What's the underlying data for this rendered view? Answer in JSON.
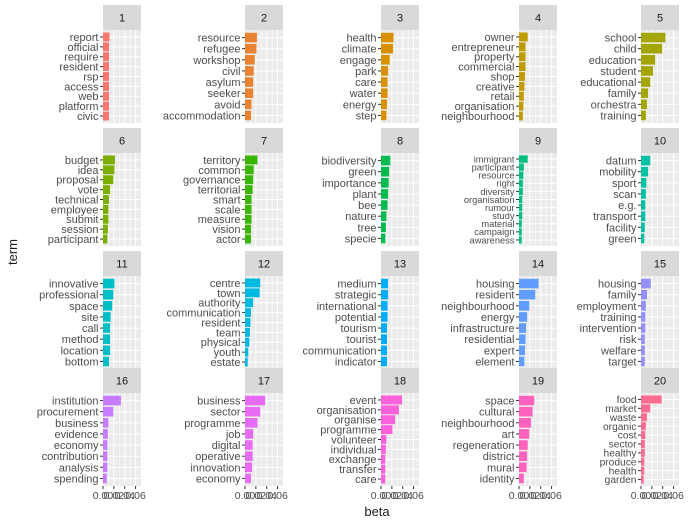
{
  "chart_data": {
    "type": "bar",
    "orientation": "horizontal",
    "facet": "topic",
    "xlabel": "beta",
    "ylabel": "term",
    "x_tick_labels": [
      "0.00",
      "0.02",
      "0.04",
      "0.06"
    ],
    "xlim": [
      0,
      0.07
    ],
    "grid": true,
    "legend": "none",
    "panels": [
      {
        "topic": "1",
        "color": "#F8766D",
        "terms": [
          "report",
          "official",
          "require",
          "resident",
          "rsp",
          "access",
          "web",
          "platform",
          "civic"
        ],
        "values": [
          0.012,
          0.011,
          0.011,
          0.011,
          0.011,
          0.011,
          0.011,
          0.011,
          0.011
        ]
      },
      {
        "topic": "2",
        "color": "#EA8331",
        "terms": [
          "resource",
          "refugee",
          "workshop",
          "civil",
          "asylum",
          "seeker",
          "avoid",
          "accommodation"
        ],
        "values": [
          0.022,
          0.021,
          0.018,
          0.016,
          0.015,
          0.015,
          0.012,
          0.011
        ]
      },
      {
        "topic": "3",
        "color": "#D89000",
        "terms": [
          "health",
          "climate",
          "engage",
          "park",
          "care",
          "water",
          "energy",
          "step"
        ],
        "values": [
          0.023,
          0.022,
          0.016,
          0.013,
          0.012,
          0.012,
          0.011,
          0.01
        ]
      },
      {
        "topic": "4",
        "color": "#C09B00",
        "terms": [
          "owner",
          "entrepreneur",
          "property",
          "commercial",
          "shop",
          "creative",
          "retail",
          "organisation",
          "neighbourhood"
        ],
        "values": [
          0.016,
          0.012,
          0.012,
          0.012,
          0.011,
          0.01,
          0.009,
          0.008,
          0.007
        ]
      },
      {
        "topic": "5",
        "color": "#A3A500",
        "terms": [
          "school",
          "child",
          "education",
          "student",
          "educational",
          "family",
          "orchestra",
          "training"
        ],
        "values": [
          0.045,
          0.039,
          0.026,
          0.022,
          0.017,
          0.013,
          0.011,
          0.009
        ]
      },
      {
        "topic": "6",
        "color": "#7CAE00",
        "terms": [
          "budget",
          "idea",
          "proposal",
          "vote",
          "technical",
          "employee",
          "submit",
          "session",
          "participant"
        ],
        "values": [
          0.022,
          0.021,
          0.019,
          0.013,
          0.011,
          0.01,
          0.01,
          0.009,
          0.008
        ]
      },
      {
        "topic": "7",
        "color": "#39B600",
        "terms": [
          "territory",
          "common",
          "governance",
          "territorial",
          "smart",
          "scale",
          "measure",
          "vision",
          "actor"
        ],
        "values": [
          0.023,
          0.016,
          0.015,
          0.014,
          0.012,
          0.012,
          0.012,
          0.011,
          0.011
        ]
      },
      {
        "topic": "8",
        "color": "#00BB4E",
        "terms": [
          "biodiversity",
          "green",
          "importance",
          "plant",
          "bee",
          "nature",
          "tree",
          "specie"
        ],
        "values": [
          0.017,
          0.015,
          0.014,
          0.013,
          0.012,
          0.01,
          0.009,
          0.008
        ]
      },
      {
        "topic": "9",
        "color": "#00BF7D",
        "terms": [
          "immigrant",
          "participant",
          "resource",
          "right",
          "diversity",
          "organisation",
          "rumour",
          "study",
          "material",
          "campaign",
          "awareness"
        ],
        "values": [
          0.016,
          0.009,
          0.008,
          0.007,
          0.007,
          0.006,
          0.006,
          0.006,
          0.005,
          0.005,
          0.005
        ]
      },
      {
        "topic": "10",
        "color": "#00C1A3",
        "terms": [
          "datum",
          "mobility",
          "sport",
          "scan",
          "e.g.",
          "transport",
          "facility",
          "green"
        ],
        "values": [
          0.017,
          0.013,
          0.01,
          0.009,
          0.008,
          0.008,
          0.007,
          0.006
        ]
      },
      {
        "topic": "11",
        "color": "#00BFC4",
        "terms": [
          "innovative",
          "professional",
          "space",
          "site",
          "call",
          "method",
          "location",
          "bottom"
        ],
        "values": [
          0.021,
          0.019,
          0.017,
          0.014,
          0.013,
          0.013,
          0.013,
          0.011
        ]
      },
      {
        "topic": "12",
        "color": "#00B9E3",
        "terms": [
          "centre",
          "town",
          "authority",
          "communication",
          "resident",
          "team",
          "physical",
          "youth",
          "estate"
        ],
        "values": [
          0.028,
          0.027,
          0.015,
          0.011,
          0.01,
          0.009,
          0.008,
          0.006,
          0.005
        ]
      },
      {
        "topic": "13",
        "color": "#00ADFA",
        "terms": [
          "medium",
          "strategic",
          "international",
          "potential",
          "tourism",
          "tourist",
          "communication",
          "indicator"
        ],
        "values": [
          0.013,
          0.013,
          0.012,
          0.012,
          0.011,
          0.011,
          0.011,
          0.011
        ]
      },
      {
        "topic": "14",
        "color": "#619CFF",
        "terms": [
          "housing",
          "resident",
          "neighbourhood",
          "energy",
          "infrastructure",
          "residential",
          "expert",
          "element"
        ],
        "values": [
          0.036,
          0.03,
          0.019,
          0.015,
          0.013,
          0.012,
          0.011,
          0.01
        ]
      },
      {
        "topic": "15",
        "color": "#9590FF",
        "terms": [
          "housing",
          "family",
          "employment",
          "training",
          "intervention",
          "risk",
          "welfare",
          "target"
        ],
        "values": [
          0.018,
          0.011,
          0.009,
          0.008,
          0.008,
          0.007,
          0.007,
          0.007
        ]
      },
      {
        "topic": "16",
        "color": "#C77CFF",
        "terms": [
          "institution",
          "procurement",
          "business",
          "evidence",
          "economy",
          "contribution",
          "analysis",
          "spending"
        ],
        "values": [
          0.033,
          0.019,
          0.01,
          0.009,
          0.008,
          0.008,
          0.008,
          0.007
        ]
      },
      {
        "topic": "17",
        "color": "#E76BF3",
        "terms": [
          "business",
          "sector",
          "programme",
          "job",
          "digital",
          "operative",
          "innovation",
          "economy"
        ],
        "values": [
          0.037,
          0.028,
          0.023,
          0.015,
          0.014,
          0.014,
          0.013,
          0.011
        ]
      },
      {
        "topic": "18",
        "color": "#FA62DB",
        "terms": [
          "event",
          "organisation",
          "organise",
          "programme",
          "volunteer",
          "individual",
          "exchange",
          "transfer",
          "care"
        ],
        "values": [
          0.039,
          0.033,
          0.026,
          0.021,
          0.01,
          0.009,
          0.008,
          0.008,
          0.008
        ]
      },
      {
        "topic": "19",
        "color": "#FF62BC",
        "terms": [
          "space",
          "cultural",
          "neighbourhood",
          "art",
          "regeneration",
          "district",
          "mural",
          "identity"
        ],
        "values": [
          0.028,
          0.025,
          0.022,
          0.019,
          0.016,
          0.015,
          0.014,
          0.009
        ]
      },
      {
        "topic": "20",
        "color": "#FF6C91",
        "terms": [
          "food",
          "market",
          "waste",
          "organic",
          "cost",
          "sector",
          "healthy",
          "produce",
          "health",
          "garden"
        ],
        "values": [
          0.038,
          0.017,
          0.011,
          0.009,
          0.008,
          0.007,
          0.007,
          0.006,
          0.006,
          0.005
        ]
      }
    ]
  }
}
